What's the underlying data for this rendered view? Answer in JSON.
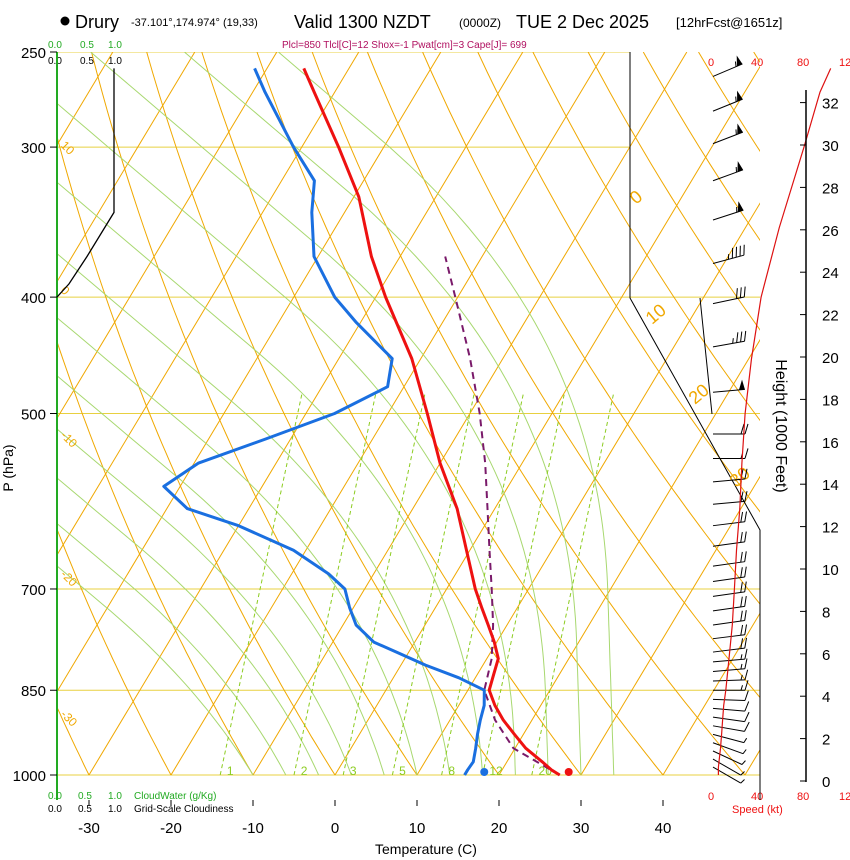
{
  "header": {
    "station": "Drury",
    "coords": "-37.101°,174.974° (19,33)",
    "valid": "Valid 1300 NZDT",
    "utc": "(0000Z)",
    "date": "TUE 2 Dec 2025",
    "forecast": "[12hrFcst@1651z]",
    "parcel_info": "Plcl=850 Tlcl[C]=12 Shox=-1 Pwat[cm]=3 Cape[J]= 699"
  },
  "colors": {
    "temperature": "#ee1111",
    "dewpoint": "#1a6fe0",
    "parcel": "#7a1a6a",
    "isotherm": "#f0a800",
    "isobar": "#e8d040",
    "mixing": "#8ccc20",
    "moist_adiabat": "#a8d870",
    "cloud": "#22aa22",
    "height": "#dd1111",
    "wind": "#000000"
  },
  "chart_data": {
    "type": "skew-t log-p",
    "xlabel": "Temperature (C)",
    "ylabel": "P (hPa)",
    "right_ylabel": "Height (1000 Feet)",
    "x_ticks": [
      -30,
      -20,
      -10,
      0,
      10,
      20,
      30,
      40
    ],
    "pressure_ticks": [
      250,
      300,
      400,
      500,
      700,
      850,
      1000
    ],
    "height_ticks_kft": [
      0,
      2,
      4,
      6,
      8,
      10,
      12,
      14,
      16,
      18,
      20,
      22,
      24,
      26,
      28,
      30,
      32
    ],
    "top_cloud_water_scale": [
      "0.0",
      "0.5",
      "1.0"
    ],
    "top_cloudiness_scale": [
      "0.0",
      "0.5",
      "1.0"
    ],
    "bottom_cloud_water_scale": [
      "0.0",
      "0.5",
      "1.0"
    ],
    "bottom_cloud_water_label": "CloudWater (g/Kg)",
    "bottom_cloudiness_scale": [
      "0.0",
      "0.5",
      "1.0"
    ],
    "bottom_cloudiness_label": "Grid-Scale Cloudiness",
    "speed_ticks": [
      "0",
      "40",
      "80",
      "12"
    ],
    "speed_label": "Speed (kt)",
    "isotherm_labels": [
      "10",
      "0",
      "-10",
      "-20",
      "-30"
    ],
    "theta_labels": [
      "0",
      "10",
      "20",
      "30"
    ],
    "mixing_ratio_labels": [
      "1",
      "2",
      "3",
      "5",
      "8",
      "12",
      "20"
    ],
    "temperature": [
      {
        "p": 1000,
        "t": 27.4
      },
      {
        "p": 990,
        "t": 26.0
      },
      {
        "p": 975,
        "t": 24.3
      },
      {
        "p": 950,
        "t": 21.3
      },
      {
        "p": 925,
        "t": 18.9
      },
      {
        "p": 900,
        "t": 16.5
      },
      {
        "p": 875,
        "t": 14.4
      },
      {
        "p": 850,
        "t": 12.6
      },
      {
        "p": 825,
        "t": 12.0
      },
      {
        "p": 800,
        "t": 11.4
      },
      {
        "p": 775,
        "t": 9.7
      },
      {
        "p": 750,
        "t": 7.7
      },
      {
        "p": 725,
        "t": 5.6
      },
      {
        "p": 700,
        "t": 3.5
      },
      {
        "p": 650,
        "t": -0.4
      },
      {
        "p": 600,
        "t": -4.6
      },
      {
        "p": 550,
        "t": -10.0
      },
      {
        "p": 500,
        "t": -15.2
      },
      {
        "p": 450,
        "t": -21.1
      },
      {
        "p": 400,
        "t": -28.8
      },
      {
        "p": 370,
        "t": -33.5
      },
      {
        "p": 330,
        "t": -39.4
      },
      {
        "p": 300,
        "t": -45.5
      },
      {
        "p": 270,
        "t": -52.5
      },
      {
        "p": 258,
        "t": -55.5
      }
    ],
    "dewpoint": [
      {
        "p": 1000,
        "t": 15.8
      },
      {
        "p": 990,
        "t": 15.8
      },
      {
        "p": 975,
        "t": 15.9
      },
      {
        "p": 950,
        "t": 15.2
      },
      {
        "p": 925,
        "t": 14.4
      },
      {
        "p": 900,
        "t": 13.7
      },
      {
        "p": 875,
        "t": 13.1
      },
      {
        "p": 850,
        "t": 12.0
      },
      {
        "p": 830,
        "t": 8.0
      },
      {
        "p": 810,
        "t": 3.0
      },
      {
        "p": 790,
        "t": -1.5
      },
      {
        "p": 775,
        "t": -5.0
      },
      {
        "p": 750,
        "t": -8.4
      },
      {
        "p": 725,
        "t": -10.5
      },
      {
        "p": 700,
        "t": -12.4
      },
      {
        "p": 680,
        "t": -15.5
      },
      {
        "p": 650,
        "t": -21.5
      },
      {
        "p": 620,
        "t": -30.0
      },
      {
        "p": 600,
        "t": -37.5
      },
      {
        "p": 575,
        "t": -42.0
      },
      {
        "p": 550,
        "t": -39.5
      },
      {
        "p": 525,
        "t": -33.0
      },
      {
        "p": 500,
        "t": -26.5
      },
      {
        "p": 475,
        "t": -22.0
      },
      {
        "p": 450,
        "t": -23.5
      },
      {
        "p": 420,
        "t": -30.5
      },
      {
        "p": 400,
        "t": -35.0
      },
      {
        "p": 370,
        "t": -40.5
      },
      {
        "p": 340,
        "t": -44.0
      },
      {
        "p": 320,
        "t": -46.0
      },
      {
        "p": 300,
        "t": -51.0
      },
      {
        "p": 270,
        "t": -58.5
      },
      {
        "p": 258,
        "t": -61.5
      }
    ],
    "parcel": [
      {
        "p": 1000,
        "t": 27.4
      },
      {
        "p": 950,
        "t": 19.8
      },
      {
        "p": 900,
        "t": 15.5
      },
      {
        "p": 850,
        "t": 12.0
      },
      {
        "p": 800,
        "t": 10.6
      },
      {
        "p": 750,
        "t": 8.3
      },
      {
        "p": 700,
        "t": 5.5
      },
      {
        "p": 650,
        "t": 2.4
      },
      {
        "p": 600,
        "t": -0.9
      },
      {
        "p": 550,
        "t": -4.5
      },
      {
        "p": 500,
        "t": -8.8
      },
      {
        "p": 450,
        "t": -14.0
      },
      {
        "p": 400,
        "t": -20.3
      },
      {
        "p": 370,
        "t": -24.5
      }
    ],
    "surface_points": {
      "temperature_c": 28.5,
      "dewpoint_c": 18.2
    },
    "cloudiness_profile": [
      {
        "p": 258,
        "v": 0.95
      },
      {
        "p": 340,
        "v": 0.95
      },
      {
        "p": 370,
        "v": 0.5
      },
      {
        "p": 390,
        "v": 0.2
      },
      {
        "p": 400,
        "v": 0.0
      }
    ],
    "wind_barbs": [
      {
        "p": 262,
        "spd": 55,
        "dir": 247
      },
      {
        "p": 280,
        "spd": 55,
        "dir": 248
      },
      {
        "p": 298,
        "spd": 55,
        "dir": 249
      },
      {
        "p": 320,
        "spd": 55,
        "dir": 250
      },
      {
        "p": 345,
        "spd": 55,
        "dir": 252
      },
      {
        "p": 375,
        "spd": 45,
        "dir": 255
      },
      {
        "p": 405,
        "spd": 30,
        "dir": 258
      },
      {
        "p": 440,
        "spd": 35,
        "dir": 260
      },
      {
        "p": 480,
        "spd": 50,
        "dir": 265
      },
      {
        "p": 520,
        "spd": 20,
        "dir": 270
      },
      {
        "p": 545,
        "spd": 15,
        "dir": 270
      },
      {
        "p": 570,
        "spd": 20,
        "dir": 265
      },
      {
        "p": 595,
        "spd": 20,
        "dir": 265
      },
      {
        "p": 620,
        "spd": 20,
        "dir": 263
      },
      {
        "p": 645,
        "spd": 20,
        "dir": 262
      },
      {
        "p": 670,
        "spd": 20,
        "dir": 262
      },
      {
        "p": 690,
        "spd": 20,
        "dir": 262
      },
      {
        "p": 710,
        "spd": 20,
        "dir": 262
      },
      {
        "p": 730,
        "spd": 20,
        "dir": 262
      },
      {
        "p": 750,
        "spd": 20,
        "dir": 262
      },
      {
        "p": 770,
        "spd": 20,
        "dir": 263
      },
      {
        "p": 790,
        "spd": 20,
        "dir": 263
      },
      {
        "p": 805,
        "spd": 15,
        "dir": 265
      },
      {
        "p": 820,
        "spd": 15,
        "dir": 265
      },
      {
        "p": 835,
        "spd": 15,
        "dir": 268
      },
      {
        "p": 850,
        "spd": 15,
        "dir": 270
      },
      {
        "p": 865,
        "spd": 10,
        "dir": 272
      },
      {
        "p": 880,
        "spd": 10,
        "dir": 275
      },
      {
        "p": 895,
        "spd": 10,
        "dir": 278
      },
      {
        "p": 910,
        "spd": 10,
        "dir": 280
      },
      {
        "p": 925,
        "spd": 5,
        "dir": 285
      },
      {
        "p": 940,
        "spd": 5,
        "dir": 290
      },
      {
        "p": 955,
        "spd": 5,
        "dir": 295
      },
      {
        "p": 970,
        "spd": 5,
        "dir": 300
      },
      {
        "p": 985,
        "spd": 5,
        "dir": 300
      }
    ],
    "speed_profile": [
      {
        "p": 1000,
        "spd": 5
      },
      {
        "p": 985,
        "spd": 5
      },
      {
        "p": 950,
        "spd": 7
      },
      {
        "p": 925,
        "spd": 8
      },
      {
        "p": 900,
        "spd": 9
      },
      {
        "p": 875,
        "spd": 10
      },
      {
        "p": 850,
        "spd": 12
      },
      {
        "p": 800,
        "spd": 15
      },
      {
        "p": 750,
        "spd": 18
      },
      {
        "p": 700,
        "spd": 20
      },
      {
        "p": 650,
        "spd": 22
      },
      {
        "p": 600,
        "spd": 25
      },
      {
        "p": 550,
        "spd": 27
      },
      {
        "p": 500,
        "spd": 30
      },
      {
        "p": 450,
        "spd": 36
      },
      {
        "p": 400,
        "spd": 45
      },
      {
        "p": 350,
        "spd": 62
      },
      {
        "p": 300,
        "spd": 85
      },
      {
        "p": 270,
        "spd": 100
      },
      {
        "p": 258,
        "spd": 110
      }
    ],
    "tropopause_labels": [
      "0",
      "10",
      "20",
      "30"
    ]
  }
}
